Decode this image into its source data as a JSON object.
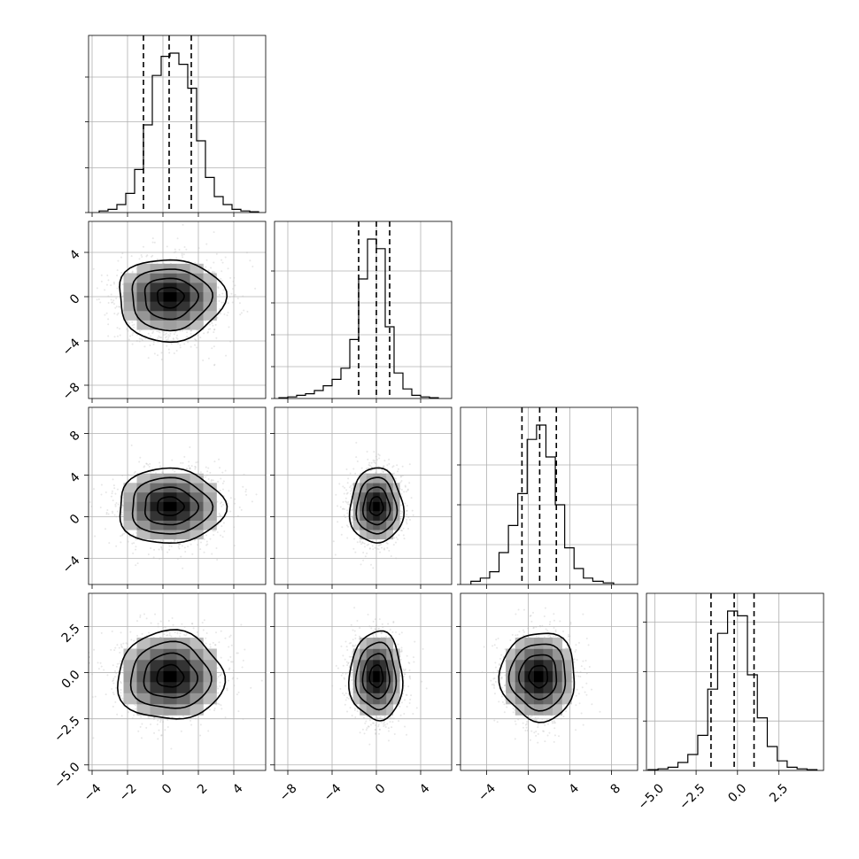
{
  "chart_data": {
    "type": "corner",
    "n_params": 4,
    "grid": true,
    "params": [
      {
        "ticks": [
          -4,
          -2,
          0,
          2,
          4
        ],
        "tick_labels": [
          "−4",
          "−2",
          "0",
          "2",
          "4"
        ],
        "range": [
          -4.2,
          5.8
        ],
        "bins_x": [
          -3.6,
          -3.1,
          -2.6,
          -2.1,
          -1.6,
          -1.1,
          -0.6,
          -0.1,
          0.4,
          0.9,
          1.4,
          1.9,
          2.4,
          2.9,
          3.4,
          3.9,
          4.4,
          4.9,
          5.4
        ],
        "hist": [
          0.01,
          0.02,
          0.05,
          0.12,
          0.27,
          0.55,
          0.86,
          0.98,
          1.0,
          0.93,
          0.78,
          0.45,
          0.22,
          0.1,
          0.05,
          0.02,
          0.01,
          0.005
        ],
        "hist_yticks": [
          0.0,
          0.28,
          0.57,
          0.85
        ],
        "quantiles": [
          -1.1,
          0.35,
          1.6
        ],
        "center": [
          0.4
        ]
      },
      {
        "ticks": [
          -8,
          -4,
          0,
          4
        ],
        "tick_labels": [
          "−8",
          "−4",
          "0",
          "4"
        ],
        "range": [
          -9.2,
          6.8
        ],
        "bins_x": [
          -8.8,
          -8.0,
          -7.2,
          -6.4,
          -5.6,
          -4.8,
          -4.0,
          -3.2,
          -2.4,
          -1.6,
          -0.8,
          0.0,
          0.8,
          1.6,
          2.4,
          3.2,
          4.0,
          4.8,
          5.6
        ],
        "hist": [
          0.005,
          0.01,
          0.02,
          0.03,
          0.05,
          0.08,
          0.12,
          0.19,
          0.37,
          0.75,
          1.0,
          0.94,
          0.45,
          0.16,
          0.06,
          0.02,
          0.01,
          0.005
        ],
        "hist_yticks": [
          0.0,
          0.2,
          0.4,
          0.6,
          0.8
        ],
        "quantiles": [
          -1.6,
          0.0,
          1.2
        ],
        "center": [
          0.0
        ]
      },
      {
        "ticks": [
          -4,
          0,
          4,
          8
        ],
        "tick_labels": [
          "−4",
          "0",
          "4",
          "8"
        ],
        "range": [
          -6.5,
          10.5
        ],
        "bins_x": [
          -5.5,
          -4.6,
          -3.7,
          -2.8,
          -1.9,
          -1.0,
          -0.1,
          0.8,
          1.7,
          2.6,
          3.5,
          4.4,
          5.3,
          6.2,
          7.2,
          8.2
        ],
        "hist": [
          0.02,
          0.04,
          0.08,
          0.2,
          0.37,
          0.57,
          0.91,
          1.0,
          0.8,
          0.5,
          0.23,
          0.1,
          0.04,
          0.02,
          0.01
        ],
        "hist_yticks": [
          0.0,
          0.25,
          0.5,
          0.75
        ],
        "quantiles": [
          -0.6,
          1.1,
          2.7
        ],
        "center": [
          1.0
        ]
      },
      {
        "ticks": [
          -5.0,
          -2.5,
          0.0,
          2.5
        ],
        "tick_labels": [
          "−5.0",
          "−2.5",
          "0.0",
          "2.5"
        ],
        "range": [
          -5.5,
          5.2
        ],
        "bins_x": [
          -5.4,
          -4.8,
          -4.2,
          -3.6,
          -3.0,
          -2.4,
          -1.8,
          -1.2,
          -0.6,
          0.0,
          0.6,
          1.2,
          1.8,
          2.4,
          3.0,
          3.6,
          4.2,
          4.8
        ],
        "hist": [
          0.005,
          0.01,
          0.02,
          0.05,
          0.1,
          0.22,
          0.51,
          0.86,
          1.0,
          0.97,
          0.6,
          0.33,
          0.15,
          0.06,
          0.02,
          0.01,
          0.005
        ],
        "hist_yticks": [
          0.0,
          0.31,
          0.62,
          0.93
        ],
        "quantiles": [
          -1.6,
          -0.2,
          1.0
        ],
        "center": [
          -0.2
        ]
      }
    ],
    "row_tick_overrides": {
      "1": {
        "range": [
          -9.2,
          6.8
        ]
      },
      "2": {
        "range": [
          -6.5,
          10.5
        ]
      },
      "3": {
        "range": [
          -5.3,
          4.3
        ]
      }
    },
    "pairs": [
      {
        "row": 1,
        "col": 0,
        "mean": [
          0.4,
          0.0
        ],
        "sigma": [
          1.5,
          1.7
        ],
        "rho": 0.0,
        "skew_down": 1.0
      },
      {
        "row": 2,
        "col": 0,
        "mean": [
          0.4,
          1.0
        ],
        "sigma": [
          1.5,
          1.8
        ],
        "rho": 0.0,
        "skew_down": 0.0
      },
      {
        "row": 2,
        "col": 1,
        "mean": [
          0.0,
          1.0
        ],
        "sigma": [
          1.2,
          1.8
        ],
        "rho": 0.0,
        "skew_down": 0.0
      },
      {
        "row": 3,
        "col": 0,
        "mean": [
          0.4,
          -0.2
        ],
        "sigma": [
          1.5,
          1.2
        ],
        "rho": 0.0,
        "skew_down": 0.0
      },
      {
        "row": 3,
        "col": 1,
        "mean": [
          0.0,
          -0.2
        ],
        "sigma": [
          1.2,
          1.2
        ],
        "rho": 0.0,
        "skew_down": 0.0
      },
      {
        "row": 3,
        "col": 2,
        "mean": [
          1.0,
          -0.2
        ],
        "sigma": [
          1.8,
          1.2
        ],
        "rho": 0.0,
        "skew_down": 0.0
      }
    ],
    "contour_levels_sigma": [
      0.5,
      1.0,
      1.5,
      2.0
    ]
  }
}
